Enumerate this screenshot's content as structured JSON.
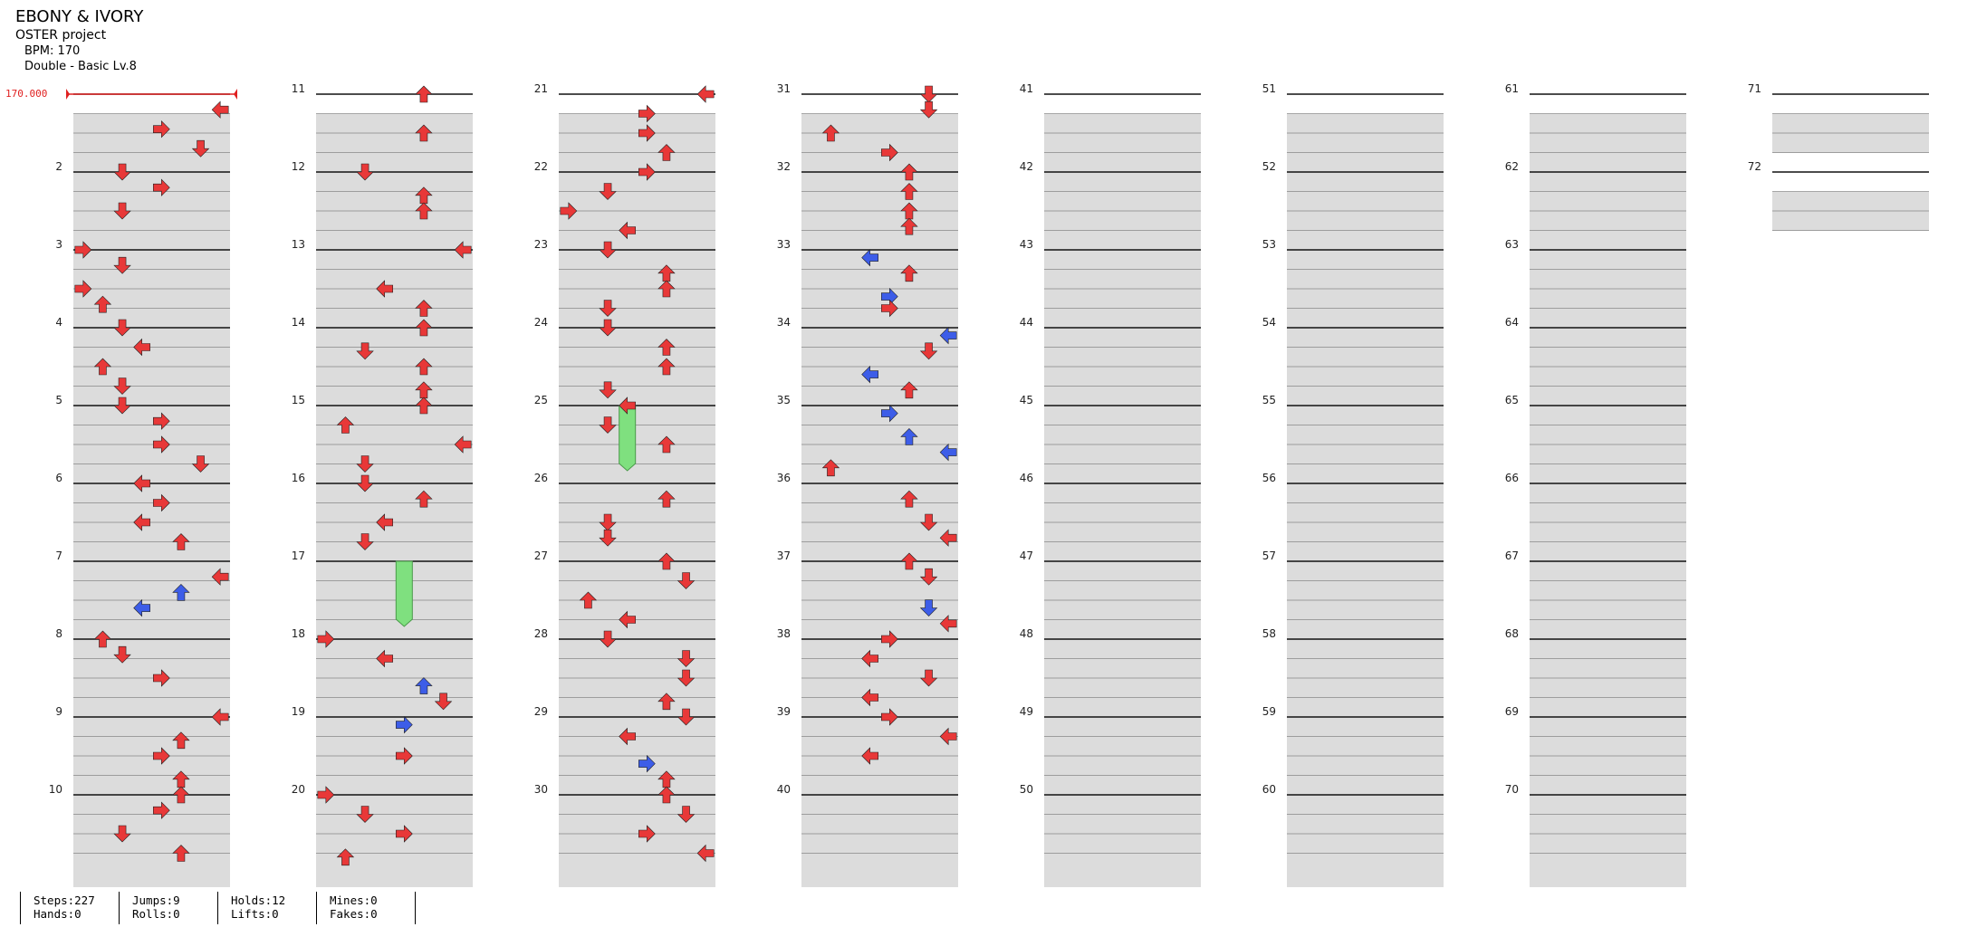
{
  "song": {
    "title": "EBONY & IVORY",
    "artist": "OSTER project",
    "bpm_line": "BPM: 170",
    "difficulty_line": "Double - Basic Lv.8"
  },
  "bpm_marker": "170.000",
  "measures": 72,
  "colors": {
    "red_note": "#e83838",
    "blue_note": "#3d5de8",
    "hold": "#7fe07f",
    "lane_gray": "#dcdcdc"
  },
  "notes": [
    [
      1.2,
      7
    ],
    [
      1.45,
      4
    ],
    [
      1.7,
      6
    ],
    [
      2,
      2
    ],
    [
      2.2,
      4
    ],
    [
      2.5,
      2
    ],
    [
      3,
      0
    ],
    [
      3.2,
      2
    ],
    [
      3.5,
      0
    ],
    [
      3.7,
      1
    ],
    [
      4,
      2
    ],
    [
      4.25,
      3
    ],
    [
      4.5,
      1
    ],
    [
      4.75,
      2
    ],
    [
      5,
      2
    ],
    [
      5.2,
      4
    ],
    [
      5.5,
      4
    ],
    [
      5.75,
      6
    ],
    [
      6,
      3
    ],
    [
      6.25,
      4
    ],
    [
      6.5,
      3
    ],
    [
      6.75,
      5
    ],
    [
      7.2,
      7
    ],
    [
      7.4,
      5
    ],
    [
      7.6,
      3
    ],
    [
      8,
      1
    ],
    [
      8.2,
      2
    ],
    [
      8.5,
      4
    ],
    [
      9,
      7
    ],
    [
      9.3,
      5
    ],
    [
      9.5,
      4
    ],
    [
      9.8,
      5
    ],
    [
      10,
      5
    ],
    [
      10.2,
      4
    ],
    [
      10.5,
      2
    ],
    [
      10.75,
      5
    ],
    [
      11,
      5
    ],
    [
      11.5,
      5
    ],
    [
      12,
      2
    ],
    [
      12.3,
      5
    ],
    [
      12.5,
      5
    ],
    [
      13,
      7
    ],
    [
      13.5,
      3
    ],
    [
      13.75,
      5
    ],
    [
      14,
      5
    ],
    [
      14.3,
      2
    ],
    [
      14.5,
      5
    ],
    [
      14.8,
      5
    ],
    [
      15,
      5
    ],
    [
      15.25,
      1
    ],
    [
      15.5,
      7
    ],
    [
      15.75,
      2
    ],
    [
      16,
      2
    ],
    [
      16.2,
      5
    ],
    [
      16.5,
      3
    ],
    [
      16.75,
      2
    ],
    [
      18,
      0
    ],
    [
      18.25,
      3
    ],
    [
      18.6,
      5
    ],
    [
      18.8,
      6
    ],
    [
      19.1,
      4
    ],
    [
      19.5,
      4
    ],
    [
      20,
      0
    ],
    [
      20.25,
      2
    ],
    [
      20.5,
      4
    ],
    [
      20.8,
      1
    ],
    [
      21,
      7
    ],
    [
      21.25,
      4
    ],
    [
      21.5,
      4
    ],
    [
      21.75,
      5
    ],
    [
      22,
      4
    ],
    [
      22.25,
      2
    ],
    [
      22.5,
      0
    ],
    [
      22.75,
      3
    ],
    [
      23,
      2
    ],
    [
      23.3,
      5
    ],
    [
      23.5,
      5
    ],
    [
      23.75,
      2
    ],
    [
      24,
      2
    ],
    [
      24.25,
      5
    ],
    [
      24.5,
      5
    ],
    [
      24.8,
      2
    ],
    [
      25,
      3
    ],
    [
      25.25,
      2
    ],
    [
      25.5,
      5
    ],
    [
      26.2,
      5
    ],
    [
      26.5,
      2
    ],
    [
      26.7,
      2
    ],
    [
      27,
      5
    ],
    [
      27.25,
      6
    ],
    [
      27.5,
      1
    ],
    [
      27.75,
      3
    ],
    [
      28,
      2
    ],
    [
      28.25,
      6
    ],
    [
      28.5,
      6
    ],
    [
      28.8,
      5
    ],
    [
      29,
      6
    ],
    [
      29.25,
      3
    ],
    [
      29.6,
      4
    ],
    [
      29.8,
      5
    ],
    [
      30,
      5
    ],
    [
      30.25,
      6
    ],
    [
      30.5,
      4
    ],
    [
      30.75,
      7
    ],
    [
      31,
      6
    ],
    [
      31.2,
      6
    ],
    [
      31.5,
      1
    ],
    [
      31.75,
      4
    ],
    [
      32,
      5
    ],
    [
      32.25,
      5
    ],
    [
      32.5,
      5
    ],
    [
      32.7,
      5
    ],
    [
      33.1,
      3
    ],
    [
      33.3,
      5
    ],
    [
      33.6,
      4
    ],
    [
      33.75,
      4
    ],
    [
      34.1,
      7
    ],
    [
      34.3,
      6
    ],
    [
      34.6,
      3
    ],
    [
      34.8,
      5
    ],
    [
      35.1,
      4
    ],
    [
      35.4,
      5
    ],
    [
      35.6,
      7
    ],
    [
      35.8,
      1
    ],
    [
      36.2,
      5
    ],
    [
      36.5,
      6
    ],
    [
      36.7,
      7
    ],
    [
      37,
      5
    ],
    [
      37.2,
      6
    ],
    [
      37.6,
      6
    ],
    [
      37.8,
      7
    ],
    [
      38,
      4
    ],
    [
      38.25,
      3
    ],
    [
      38.5,
      6
    ],
    [
      38.75,
      3
    ],
    [
      39,
      4
    ],
    [
      39.25,
      7
    ],
    [
      39.5,
      3
    ]
  ],
  "stats": [
    [
      "Steps:227",
      "Hands:0"
    ],
    [
      "Jumps:9",
      "Rolls:0"
    ],
    [
      "Holds:12",
      "Lifts:0"
    ],
    [
      "Mines:0",
      "Fakes:0"
    ]
  ]
}
